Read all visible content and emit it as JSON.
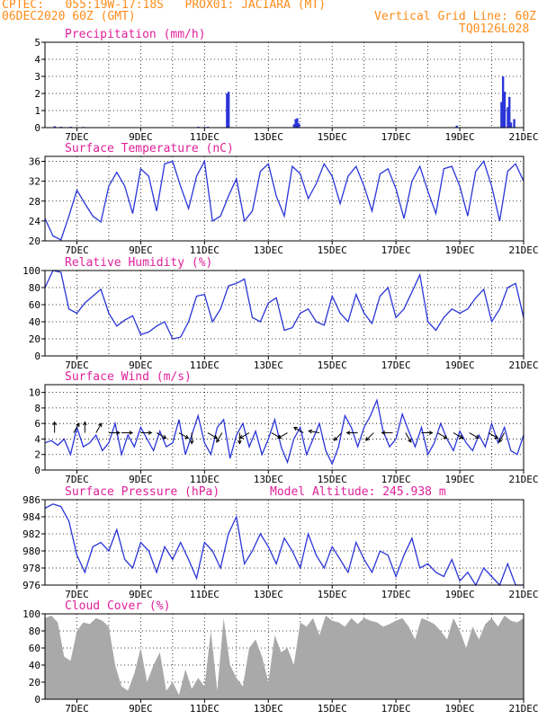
{
  "header": {
    "line1": "CPTEC:   055:19W-17:18S   PROX01: JACIARA (MT)",
    "line2": "06DEC2020 60Z (GMT)",
    "grid_note": "Vertical Grid Line: 60Z",
    "code": "TQ0126L028"
  },
  "colors": {
    "header": "#ff8c1a",
    "title": "#e0209a",
    "series": "#2a35d8",
    "cloud": "#a9a9a9",
    "axis": "#000000"
  },
  "x_axis": {
    "labels": [
      "7DEC",
      "9DEC",
      "11DEC",
      "13DEC",
      "15DEC",
      "17DEC",
      "19DEC",
      "21DEC"
    ],
    "label_days": [
      7,
      9,
      11,
      13,
      15,
      17,
      19,
      21
    ],
    "range_days": [
      6.0,
      21.0
    ]
  },
  "chart_data": [
    {
      "id": "precip",
      "type": "bar",
      "title": "Precipitation (mm/h)",
      "ylim": [
        0,
        5
      ],
      "yticks": [
        0,
        1,
        2,
        3,
        4,
        5
      ],
      "x": [
        6.3,
        6.5,
        6.8,
        7.2,
        10.8,
        11.0,
        11.1,
        11.7,
        11.75,
        13.8,
        13.85,
        13.9,
        13.95,
        18.9,
        20.3,
        20.35,
        20.4,
        20.5,
        20.55,
        20.6,
        20.7
      ],
      "values": [
        0.08,
        0.05,
        0.05,
        0.04,
        0.05,
        0.04,
        0.05,
        2.0,
        2.1,
        0.2,
        0.5,
        0.55,
        0.25,
        0.12,
        1.5,
        3.0,
        2.1,
        1.2,
        1.8,
        0.3,
        0.5
      ]
    },
    {
      "id": "temp",
      "type": "line",
      "title": "Surface Temperature (nC)",
      "ylim": [
        20,
        37
      ],
      "yticks": [
        20,
        24,
        28,
        32,
        36
      ],
      "x": [
        6.0,
        6.25,
        6.5,
        6.75,
        7.0,
        7.25,
        7.5,
        7.75,
        8.0,
        8.25,
        8.5,
        8.75,
        9.0,
        9.25,
        9.5,
        9.75,
        10.0,
        10.25,
        10.5,
        10.75,
        11.0,
        11.25,
        11.5,
        11.75,
        12.0,
        12.25,
        12.5,
        12.75,
        13.0,
        13.25,
        13.5,
        13.75,
        14.0,
        14.25,
        14.5,
        14.75,
        15.0,
        15.25,
        15.5,
        15.75,
        16.0,
        16.25,
        16.5,
        16.75,
        17.0,
        17.25,
        17.5,
        17.75,
        18.0,
        18.25,
        18.5,
        18.75,
        19.0,
        19.25,
        19.5,
        19.75,
        20.0,
        20.25,
        20.5,
        20.75,
        21.0
      ],
      "values": [
        24.5,
        21.0,
        20.2,
        25.0,
        30.2,
        27.5,
        25.0,
        23.8,
        31.0,
        33.8,
        31.0,
        25.5,
        34.5,
        33.0,
        26.0,
        35.5,
        36.0,
        31.0,
        26.5,
        33.0,
        36.0,
        24.0,
        25.0,
        29.0,
        32.5,
        24.0,
        26.0,
        34.0,
        35.5,
        29.0,
        25.0,
        35.0,
        33.5,
        28.5,
        31.5,
        35.5,
        33.0,
        27.5,
        33.0,
        35.0,
        31.0,
        26.0,
        33.5,
        34.5,
        30.5,
        24.5,
        32.0,
        35.0,
        30.0,
        25.5,
        34.5,
        35.0,
        31.0,
        25.0,
        34.0,
        36.0,
        31.0,
        24.0,
        34.0,
        35.5,
        32.0
      ]
    },
    {
      "id": "rh",
      "type": "line",
      "title": "Relative Humidity (%)",
      "ylim": [
        0,
        100
      ],
      "yticks": [
        0,
        20,
        40,
        60,
        80,
        100
      ],
      "x": [
        6.0,
        6.25,
        6.5,
        6.75,
        7.0,
        7.25,
        7.5,
        7.75,
        8.0,
        8.25,
        8.5,
        8.75,
        9.0,
        9.25,
        9.5,
        9.75,
        10.0,
        10.25,
        10.5,
        10.75,
        11.0,
        11.25,
        11.5,
        11.75,
        12.0,
        12.25,
        12.5,
        12.75,
        13.0,
        13.25,
        13.5,
        13.75,
        14.0,
        14.25,
        14.5,
        14.75,
        15.0,
        15.25,
        15.5,
        15.75,
        16.0,
        16.25,
        16.5,
        16.75,
        17.0,
        17.25,
        17.5,
        17.75,
        18.0,
        18.25,
        18.5,
        18.75,
        19.0,
        19.25,
        19.5,
        19.75,
        20.0,
        20.25,
        20.5,
        20.75,
        21.0
      ],
      "values": [
        80,
        100,
        98,
        55,
        50,
        62,
        70,
        78,
        50,
        35,
        42,
        47,
        25,
        28,
        35,
        40,
        20,
        22,
        40,
        70,
        72,
        40,
        55,
        82,
        85,
        90,
        45,
        40,
        62,
        68,
        30,
        33,
        50,
        55,
        40,
        36,
        70,
        50,
        40,
        72,
        50,
        38,
        70,
        80,
        45,
        55,
        75,
        95,
        40,
        30,
        45,
        55,
        50,
        55,
        68,
        78,
        40,
        55,
        80,
        85,
        45
      ]
    },
    {
      "id": "wind",
      "type": "line",
      "title": "Surface Wind (m/s)",
      "ylim": [
        0,
        11
      ],
      "yticks": [
        0,
        2,
        4,
        6,
        8,
        10
      ],
      "x": [
        6.0,
        6.2,
        6.4,
        6.6,
        6.8,
        7.0,
        7.2,
        7.4,
        7.6,
        7.8,
        8.0,
        8.2,
        8.4,
        8.6,
        8.8,
        9.0,
        9.2,
        9.4,
        9.6,
        9.8,
        10.0,
        10.2,
        10.4,
        10.6,
        10.8,
        11.0,
        11.2,
        11.4,
        11.6,
        11.8,
        12.0,
        12.2,
        12.4,
        12.6,
        12.8,
        13.0,
        13.2,
        13.4,
        13.6,
        13.8,
        14.0,
        14.2,
        14.4,
        14.6,
        14.8,
        15.0,
        15.2,
        15.4,
        15.6,
        15.8,
        16.0,
        16.2,
        16.4,
        16.6,
        16.8,
        17.0,
        17.2,
        17.4,
        17.6,
        17.8,
        18.0,
        18.2,
        18.4,
        18.6,
        18.8,
        19.0,
        19.2,
        19.4,
        19.6,
        19.8,
        20.0,
        20.2,
        20.4,
        20.6,
        20.8,
        21.0
      ],
      "values": [
        3.5,
        3.8,
        3.2,
        4.0,
        2.0,
        5.5,
        3.0,
        3.5,
        4.5,
        2.5,
        3.5,
        6.0,
        2.0,
        4.5,
        3.0,
        5.5,
        4.0,
        2.5,
        5.0,
        3.0,
        3.5,
        6.5,
        2.0,
        4.5,
        7.0,
        3.5,
        2.0,
        5.5,
        6.5,
        1.5,
        4.5,
        6.0,
        3.0,
        5.0,
        2.0,
        4.0,
        6.5,
        3.0,
        1.0,
        4.0,
        5.5,
        2.0,
        4.0,
        6.0,
        2.5,
        0.8,
        3.0,
        7.0,
        5.5,
        3.0,
        5.5,
        7.0,
        9.0,
        5.0,
        3.0,
        4.0,
        7.2,
        5.0,
        3.0,
        5.5,
        2.0,
        3.5,
        6.0,
        4.0,
        2.5,
        5.0,
        3.5,
        2.5,
        4.5,
        3.0,
        6.0,
        3.5,
        5.5,
        2.5,
        2.0,
        4.5
      ],
      "vectors": [
        {
          "x": 6.3,
          "dir": 90
        },
        {
          "x": 6.9,
          "dir": 60
        },
        {
          "x": 7.25,
          "dir": 90
        },
        {
          "x": 7.6,
          "dir": 60
        },
        {
          "x": 8.0,
          "dir": 0
        },
        {
          "x": 8.4,
          "dir": 0
        },
        {
          "x": 9.0,
          "dir": 0
        },
        {
          "x": 9.5,
          "dir": -30
        },
        {
          "x": 10.2,
          "dir": -30
        },
        {
          "x": 10.6,
          "dir": -90
        },
        {
          "x": 11.1,
          "dir": -30
        },
        {
          "x": 11.55,
          "dir": -120
        },
        {
          "x": 12.1,
          "dir": -90
        },
        {
          "x": 12.4,
          "dir": -150
        },
        {
          "x": 13.1,
          "dir": -30
        },
        {
          "x": 13.6,
          "dir": -150
        },
        {
          "x": 14.1,
          "dir": 150
        },
        {
          "x": 14.6,
          "dir": 170
        },
        {
          "x": 15.3,
          "dir": -135
        },
        {
          "x": 15.8,
          "dir": 180
        },
        {
          "x": 16.3,
          "dir": -135
        },
        {
          "x": 16.9,
          "dir": 180
        },
        {
          "x": 17.3,
          "dir": -60
        },
        {
          "x": 17.8,
          "dir": 0
        },
        {
          "x": 18.3,
          "dir": -30
        },
        {
          "x": 18.8,
          "dir": -30
        },
        {
          "x": 19.3,
          "dir": -30
        },
        {
          "x": 19.9,
          "dir": -30
        },
        {
          "x": 20.4,
          "dir": -120
        }
      ]
    },
    {
      "id": "pressure",
      "type": "line",
      "title": "Surface Pressure (hPa)",
      "extra_title": "Model Altitude: 245.938 m",
      "ylim": [
        976,
        986
      ],
      "yticks": [
        976,
        978,
        980,
        982,
        984,
        986
      ],
      "x": [
        6.0,
        6.25,
        6.5,
        6.75,
        7.0,
        7.25,
        7.5,
        7.75,
        8.0,
        8.25,
        8.5,
        8.75,
        9.0,
        9.25,
        9.5,
        9.75,
        10.0,
        10.25,
        10.5,
        10.75,
        11.0,
        11.25,
        11.5,
        11.75,
        12.0,
        12.25,
        12.5,
        12.75,
        13.0,
        13.25,
        13.5,
        13.75,
        14.0,
        14.25,
        14.5,
        14.75,
        15.0,
        15.25,
        15.5,
        15.75,
        16.0,
        16.25,
        16.5,
        16.75,
        17.0,
        17.25,
        17.5,
        17.75,
        18.0,
        18.25,
        18.5,
        18.75,
        19.0,
        19.25,
        19.5,
        19.75,
        20.0,
        20.25,
        20.5,
        20.75,
        21.0
      ],
      "values": [
        985,
        985.5,
        985.2,
        983.5,
        979.5,
        977.5,
        980.5,
        981,
        980,
        982.5,
        979,
        978,
        981,
        980,
        977.5,
        980.5,
        979,
        981,
        979,
        976.8,
        981,
        980,
        978,
        982,
        984,
        978.5,
        980,
        982,
        980.5,
        978.5,
        981.5,
        980,
        978,
        982,
        979.5,
        978,
        980.5,
        979,
        977.5,
        981,
        979,
        977.5,
        980,
        979.5,
        977,
        979.5,
        981.5,
        978,
        978.5,
        977.5,
        977,
        979,
        976.5,
        977.5,
        976,
        978,
        977,
        975.5,
        978.5,
        975,
        976
      ]
    },
    {
      "id": "cloud",
      "type": "area",
      "title": "Cloud Cover (%)",
      "ylim": [
        0,
        100
      ],
      "yticks": [
        0,
        20,
        40,
        60,
        80,
        100
      ],
      "x": [
        6.0,
        6.2,
        6.4,
        6.6,
        6.8,
        7.0,
        7.2,
        7.4,
        7.6,
        7.8,
        8.0,
        8.2,
        8.4,
        8.6,
        8.8,
        9.0,
        9.2,
        9.4,
        9.6,
        9.8,
        10.0,
        10.2,
        10.4,
        10.6,
        10.8,
        11.0,
        11.2,
        11.4,
        11.6,
        11.8,
        12.0,
        12.2,
        12.4,
        12.6,
        12.8,
        13.0,
        13.2,
        13.4,
        13.6,
        13.8,
        14.0,
        14.2,
        14.4,
        14.6,
        14.8,
        15.0,
        15.2,
        15.4,
        15.6,
        15.8,
        16.0,
        16.2,
        16.4,
        16.6,
        16.8,
        17.0,
        17.2,
        17.4,
        17.6,
        17.8,
        18.0,
        18.2,
        18.4,
        18.6,
        18.8,
        19.0,
        19.2,
        19.4,
        19.6,
        19.8,
        20.0,
        20.2,
        20.4,
        20.6,
        20.8,
        21.0
      ],
      "values": [
        95,
        98,
        90,
        50,
        45,
        80,
        90,
        88,
        95,
        92,
        85,
        40,
        15,
        10,
        30,
        60,
        20,
        40,
        55,
        10,
        20,
        5,
        35,
        12,
        25,
        15,
        80,
        10,
        95,
        40,
        25,
        15,
        60,
        70,
        50,
        20,
        75,
        55,
        60,
        40,
        90,
        85,
        95,
        75,
        98,
        92,
        90,
        85,
        95,
        88,
        95,
        92,
        90,
        85,
        88,
        92,
        95,
        85,
        70,
        95,
        92,
        88,
        80,
        70,
        95,
        80,
        60,
        85,
        70,
        88,
        95,
        85,
        98,
        92,
        90,
        95
      ]
    }
  ]
}
